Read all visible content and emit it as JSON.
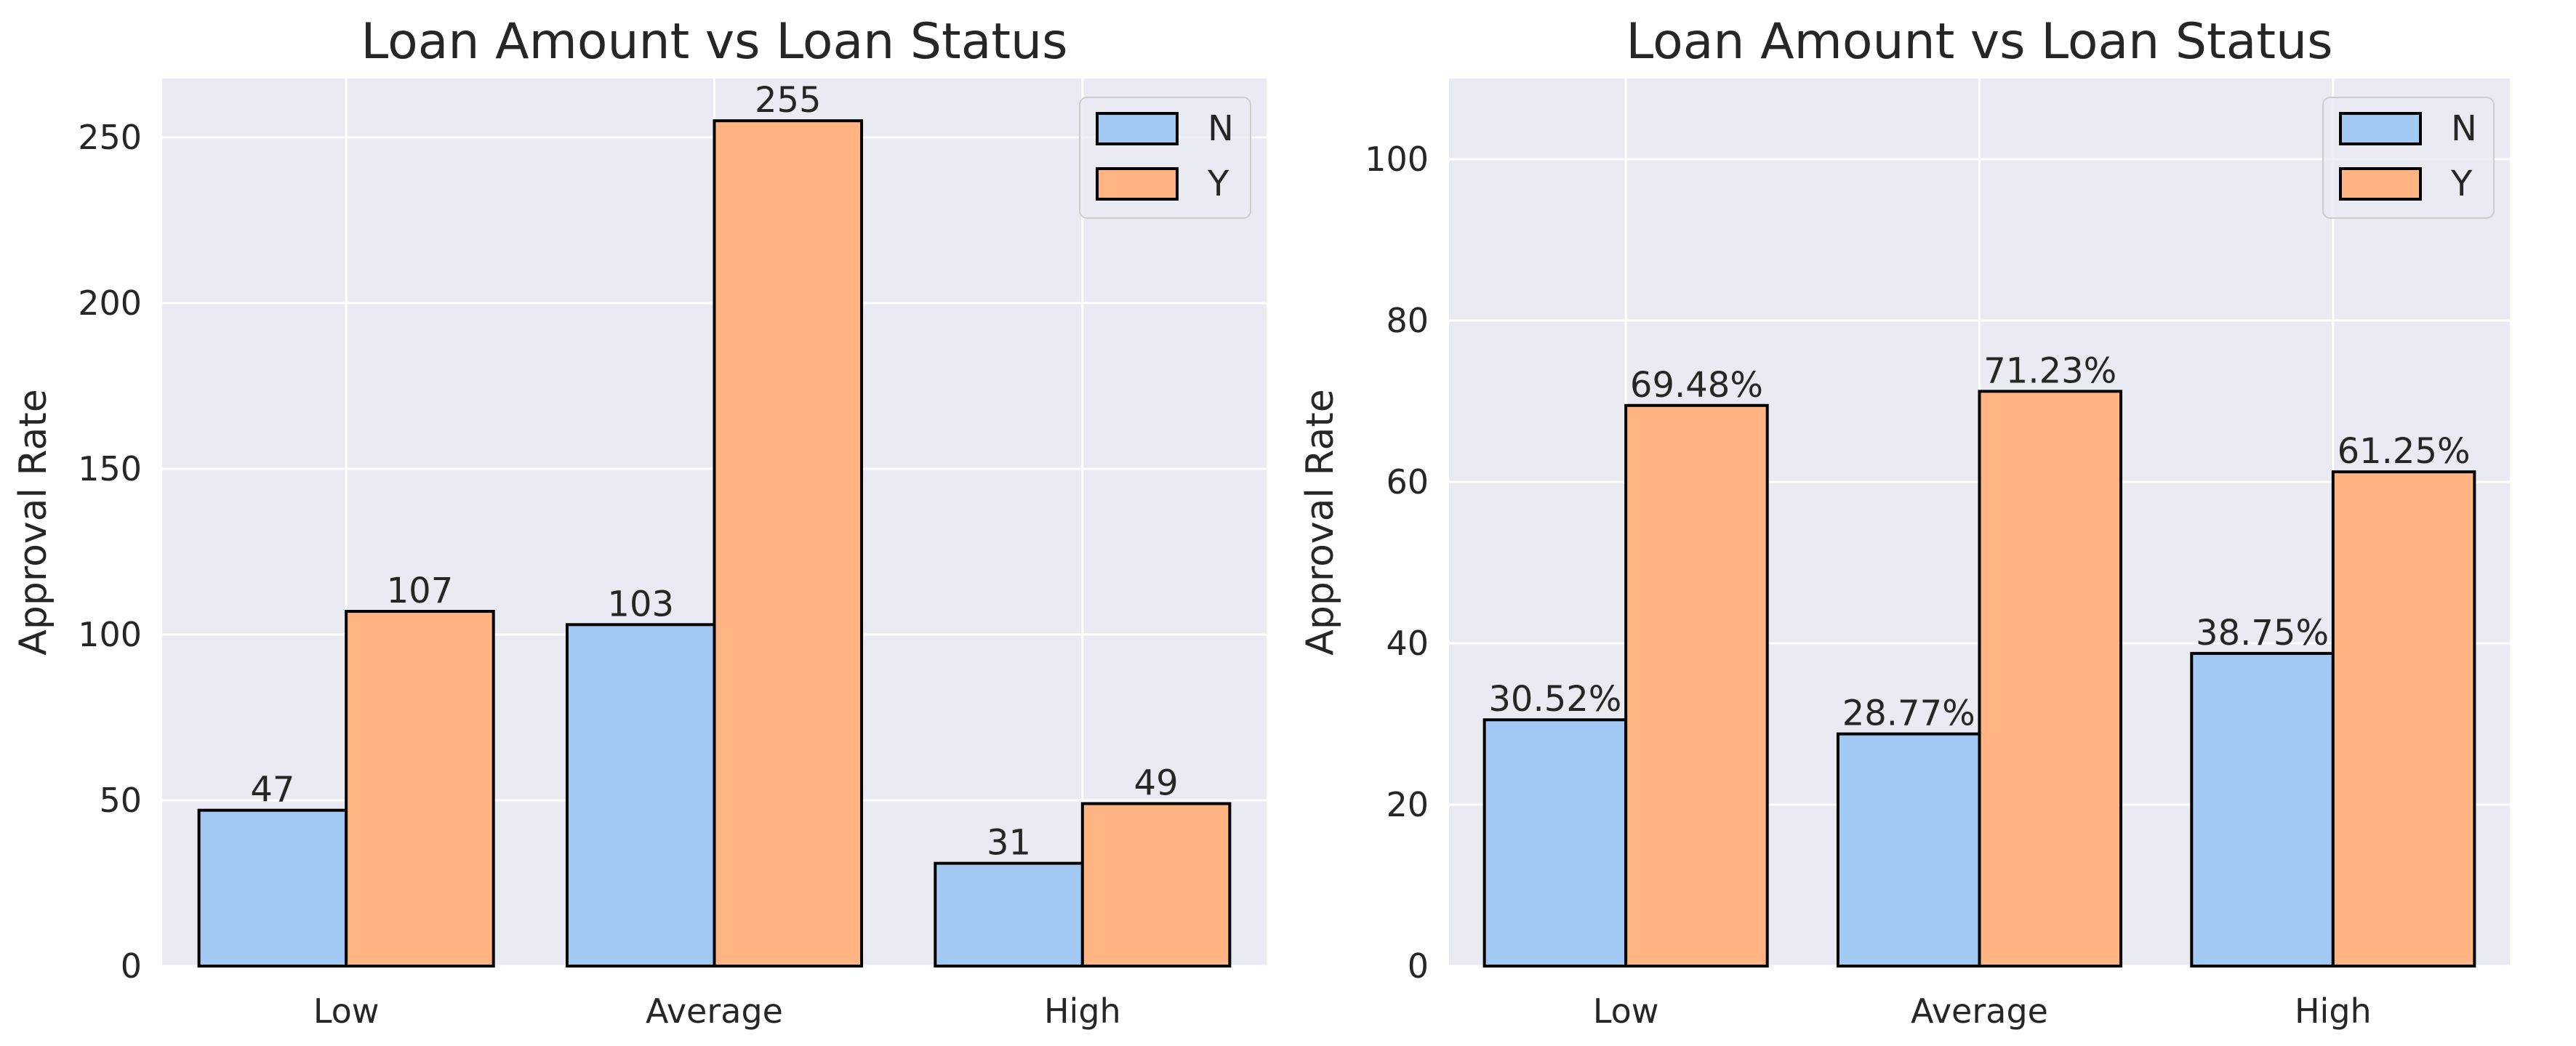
{
  "colors": {
    "background": "#EAEAF2",
    "grid": "#FFFFFF",
    "series_N": "#A1C9F4",
    "series_Y": "#FFB482",
    "edge": "#000000",
    "text": "#262626"
  },
  "chart_data": [
    {
      "type": "bar",
      "title": "Loan Amount vs Loan Status",
      "xlabel": "",
      "ylabel": "Approval Rate",
      "categories": [
        "Low",
        "Average",
        "High"
      ],
      "series": [
        {
          "name": "N",
          "values": [
            47,
            103,
            31
          ],
          "labels": [
            "47",
            "103",
            "31"
          ]
        },
        {
          "name": "Y",
          "values": [
            107,
            255,
            49
          ],
          "labels": [
            "107",
            "255",
            "49"
          ]
        }
      ],
      "ylim": [
        0,
        267.75
      ],
      "yticks": [
        0,
        50,
        100,
        150,
        200,
        250
      ],
      "grid": true,
      "legend": "top-right"
    },
    {
      "type": "bar",
      "title": "Loan Amount vs Loan Status",
      "xlabel": "",
      "ylabel": "Approval Rate",
      "categories": [
        "Low",
        "Average",
        "High"
      ],
      "series": [
        {
          "name": "N",
          "values": [
            30.52,
            28.77,
            38.75
          ],
          "labels": [
            "30.52%",
            "28.77%",
            "38.75%"
          ]
        },
        {
          "name": "Y",
          "values": [
            69.48,
            71.23,
            61.25
          ],
          "labels": [
            "69.48%",
            "71.23%",
            "61.25%"
          ]
        }
      ],
      "ylim": [
        0,
        110
      ],
      "yticks": [
        0,
        20,
        40,
        60,
        80,
        100
      ],
      "grid": true,
      "legend": "top-right"
    }
  ]
}
